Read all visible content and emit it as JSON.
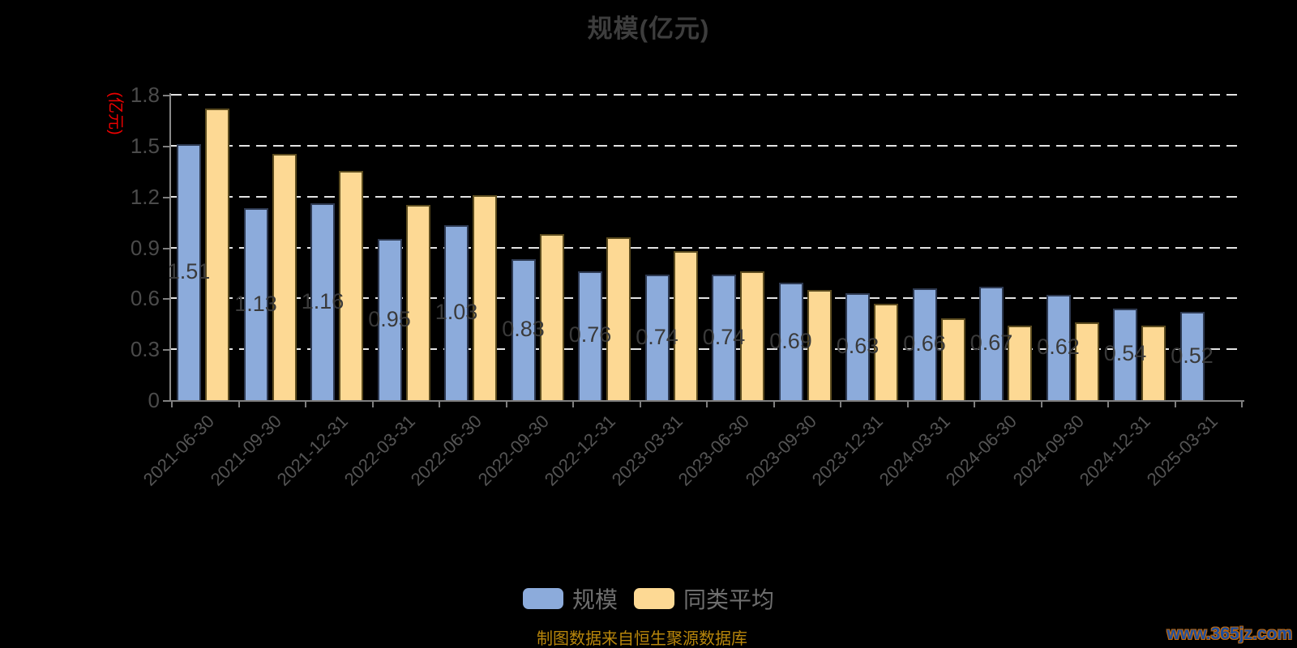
{
  "page": {
    "background": "#000000"
  },
  "chart": {
    "caption": "制图数据来自恒生聚源数据库",
    "watermark": "www.365jz.com"
  },
  "chart_data": {
    "type": "bar",
    "title": "规模(亿元)",
    "y_axis_name": "(亿元)",
    "y_axis_name_color": "#ee0000",
    "categories": [
      "2021-06-30",
      "2021-09-30",
      "2021-12-31",
      "2022-03-31",
      "2022-06-30",
      "2022-09-30",
      "2022-12-31",
      "2023-03-31",
      "2023-06-30",
      "2023-09-30",
      "2023-12-31",
      "2024-03-31",
      "2024-06-30",
      "2024-09-30",
      "2024-12-31",
      "2025-03-31"
    ],
    "series": [
      {
        "name": "规模",
        "key": "scale",
        "color": "#8CABDB",
        "border_color": "#2E3A52",
        "values": [
          1.51,
          1.13,
          1.16,
          0.95,
          1.03,
          0.83,
          0.76,
          0.74,
          0.74,
          0.69,
          0.63,
          0.66,
          0.67,
          0.62,
          0.54,
          0.52
        ],
        "value_labels": [
          "1.51",
          "1.13",
          "1.16",
          "0.95",
          "1.03",
          "0.83",
          "0.76",
          "0.74",
          "0.74",
          "0.69",
          "0.63",
          "0.66",
          "0.67",
          "0.62",
          "0.54",
          "0.52"
        ]
      },
      {
        "name": "同类平均",
        "key": "peer-average",
        "color": "#FDD994",
        "border_color": "#5C4C1F",
        "values": [
          1.72,
          1.45,
          1.35,
          1.15,
          1.21,
          0.98,
          0.96,
          0.88,
          0.76,
          0.65,
          0.57,
          0.48,
          0.44,
          0.46,
          0.44,
          null
        ],
        "value_labels": []
      }
    ],
    "xlabel": "",
    "ylabel": "(亿元)",
    "ylim": [
      0,
      1.8
    ],
    "ytick_step": 0.3,
    "ytick_labels": [
      "0",
      "0.3",
      "0.6",
      "0.9",
      "1.2",
      "1.5",
      "1.8"
    ],
    "grid": "horizontal-dashed-white",
    "legend_position": "bottom",
    "value_label_color": "#3a3a3a",
    "axis_label_color": "#4b4b4b"
  }
}
